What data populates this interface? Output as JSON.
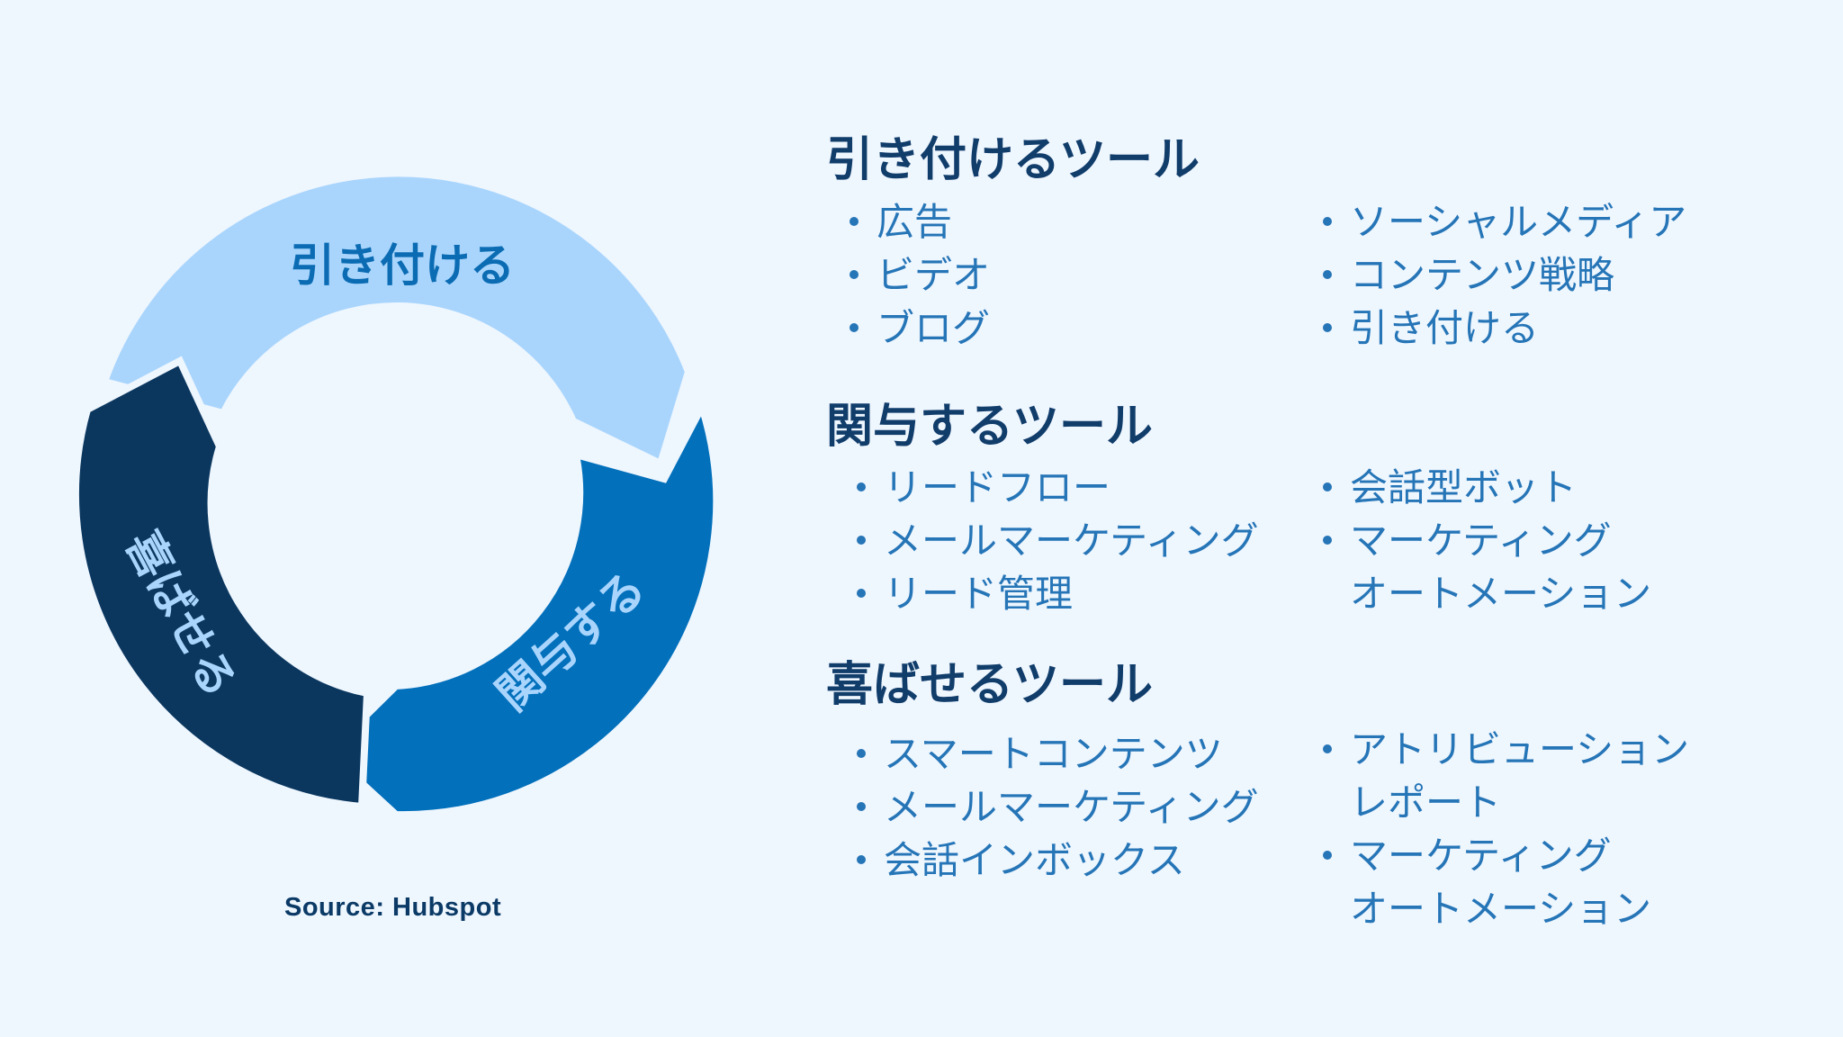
{
  "colors": {
    "background": "#eef6fe",
    "attract_segment": "#a9d5fd",
    "engage_segment": "#0270bb",
    "delight_segment": "#0b375f",
    "heading_text": "#113d6b",
    "list_text": "#2575b7"
  },
  "cycle": {
    "attract_label": "引き付ける",
    "engage_label": "関与する",
    "delight_label": "喜ばせる"
  },
  "source": "Source: Hubspot",
  "sections": [
    {
      "title": "引き付けるツール",
      "left": [
        {
          "text": "広告"
        },
        {
          "text": "ビデオ"
        },
        {
          "text": "ブログ"
        }
      ],
      "right": [
        {
          "text": "ソーシャルメディア"
        },
        {
          "text": "コンテンツ戦略"
        },
        {
          "text": "引き付ける"
        }
      ]
    },
    {
      "title": "関与するツール",
      "left": [
        {
          "text": "リードフロー"
        },
        {
          "text": "メールマーケティング"
        },
        {
          "text": "リード管理"
        }
      ],
      "right": [
        {
          "text": "会話型ボット"
        },
        {
          "text": "マーケティング",
          "text2": "オートメーション"
        }
      ]
    },
    {
      "title": "喜ばせるツール",
      "left": [
        {
          "text": "スマートコンテンツ"
        },
        {
          "text": "メールマーケティング"
        },
        {
          "text": "会話インボックス"
        }
      ],
      "right": [
        {
          "text": "アトリビューション",
          "text2": "レポート"
        },
        {
          "text": "マーケティング",
          "text2": "オートメーション"
        }
      ]
    }
  ]
}
